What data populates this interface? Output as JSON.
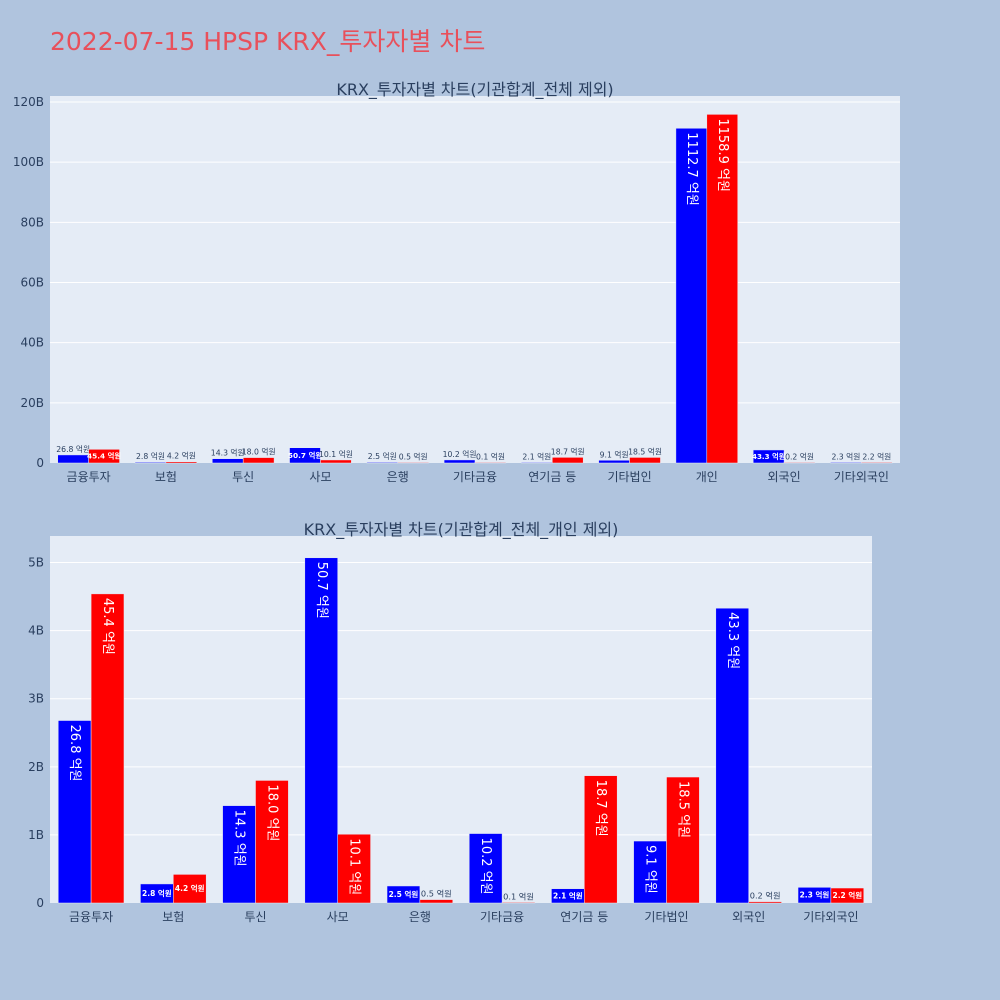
{
  "page": {
    "title": "2022-07-15 HPSP KRX_투자자별 차트"
  },
  "colors": {
    "background": "#b0c4de",
    "plot_bg": "#e5ecf6",
    "series_a": "#0000ff",
    "series_b": "#ff0000",
    "title": "#e8505b"
  },
  "chart_data": [
    {
      "type": "bar",
      "title": "KRX_투자자별 차트(기관합계_전체 제외)",
      "xlabel": "",
      "ylabel": "",
      "categories": [
        "금융투자",
        "보험",
        "투신",
        "사모",
        "은행",
        "기타금융",
        "연기금 등",
        "기타법인",
        "개인",
        "외국인",
        "기타외국인"
      ],
      "ylim": [
        0,
        122000000000
      ],
      "yticks": [
        0,
        20000000000,
        40000000000,
        60000000000,
        80000000000,
        100000000000,
        120000000000
      ],
      "ytick_labels": [
        "0",
        "20B",
        "40B",
        "60B",
        "80B",
        "100B",
        "120B"
      ],
      "grid": true,
      "series": [
        {
          "values": [
            2680000000,
            280000000,
            1430000000,
            5070000000,
            250000000,
            1020000000,
            210000000,
            910000000,
            111270000000,
            4330000000,
            230000000
          ],
          "labels": [
            "26.8 억원",
            "2.8 억원",
            "14.3 억원",
            "50.7 억원",
            "2.5 억원",
            "10.2 억원",
            "2.1 억원",
            "9.1 억원",
            "1112.7 억원",
            "43.3 억원",
            "2.3 억원"
          ]
        },
        {
          "values": [
            4540000000,
            420000000,
            1800000000,
            1010000000,
            50000000,
            10000000,
            1870000000,
            1850000000,
            115890000000,
            20000000,
            220000000
          ],
          "labels": [
            "45.4 억원",
            "4.2 억원",
            "18.0 억원",
            "10.1 억원",
            "0.5 억원",
            "0.1 억원",
            "18.7 억원",
            "18.5 억원",
            "1158.9 억원",
            "0.2 억원",
            "2.2 억원"
          ]
        }
      ]
    },
    {
      "type": "bar",
      "title": "KRX_투자자별 차트(기관합계_전체_개인 제외)",
      "xlabel": "",
      "ylabel": "",
      "categories": [
        "금융투자",
        "보험",
        "투신",
        "사모",
        "은행",
        "기타금융",
        "연기금 등",
        "기타법인",
        "외국인",
        "기타외국인"
      ],
      "ylim": [
        0,
        5390000000
      ],
      "yticks": [
        0,
        1000000000,
        2000000000,
        3000000000,
        4000000000,
        5000000000
      ],
      "ytick_labels": [
        "0",
        "1B",
        "2B",
        "3B",
        "4B",
        "5B"
      ],
      "grid": true,
      "series": [
        {
          "values": [
            2680000000,
            280000000,
            1430000000,
            5070000000,
            250000000,
            1020000000,
            210000000,
            910000000,
            4330000000,
            230000000
          ],
          "labels": [
            "26.8 억원",
            "2.8 억원",
            "14.3 억원",
            "50.7 억원",
            "2.5 억원",
            "10.2 억원",
            "2.1 억원",
            "9.1 억원",
            "43.3 억원",
            "2.3 억원"
          ]
        },
        {
          "values": [
            4540000000,
            420000000,
            1800000000,
            1010000000,
            50000000,
            10000000,
            1870000000,
            1850000000,
            20000000,
            220000000
          ],
          "labels": [
            "45.4 억원",
            "4.2 억원",
            "18.0 억원",
            "10.1 억원",
            "0.5 억원",
            "0.1 억원",
            "18.7 억원",
            "18.5 억원",
            "0.2 억원",
            "2.2 억원"
          ]
        }
      ]
    }
  ]
}
